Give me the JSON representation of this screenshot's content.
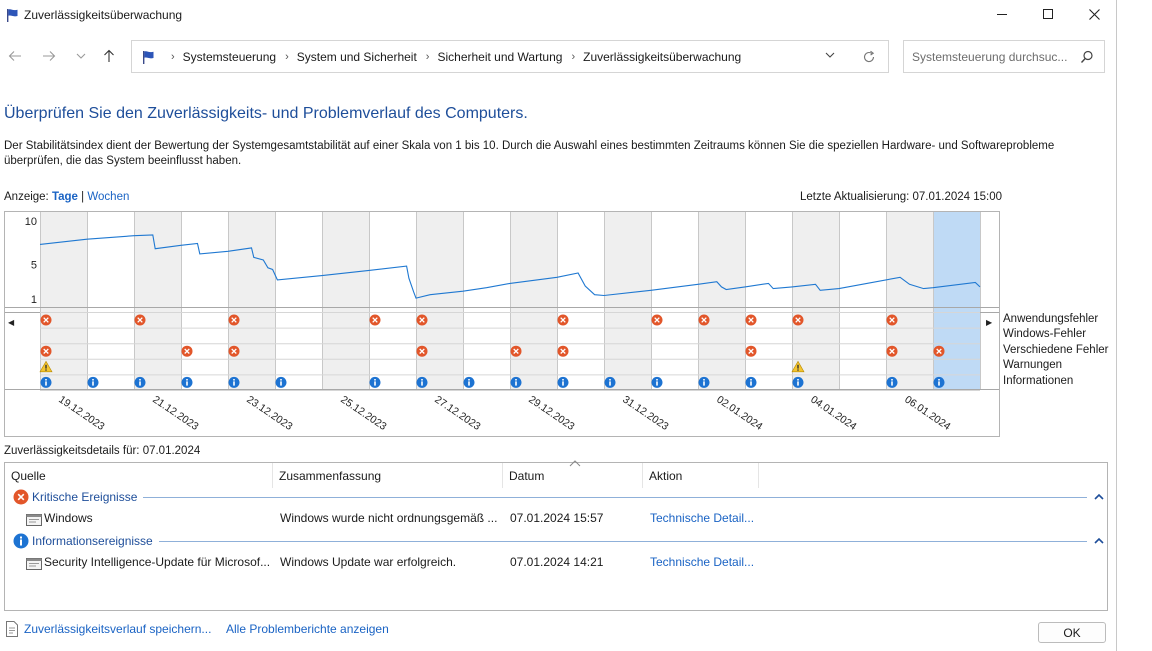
{
  "window": {
    "title": "Zuverlässigkeitsüberwachung",
    "icon": "flag-icon"
  },
  "nav": {
    "breadcrumbs": [
      "Systemsteuerung",
      "System und Sicherheit",
      "Sicherheit und Wartung",
      "Zuverlässigkeitsüberwachung"
    ],
    "search_placeholder": "Systemsteuerung durchsuc..."
  },
  "page": {
    "heading": "Überprüfen Sie den Zuverlässigkeits- und Problemverlauf des Computers.",
    "description": "Der Stabilitätsindex dient der Bewertung der Systemgesamtstabilität auf einer Skala von 1 bis 10. Durch die Auswahl eines bestimmten Zeitraums können Sie die speziellen Hardware- und Softwareprobleme überprüfen, die das System beeinflusst haben.",
    "view_label": "Anzeige:",
    "view_days": "Tage",
    "view_sep": "|",
    "view_weeks": "Wochen",
    "last_update": "Letzte Aktualisierung: 07.01.2024 15:00"
  },
  "chart_data": {
    "type": "line",
    "y_ticks": [
      "10",
      "5",
      "1"
    ],
    "ylim": [
      1,
      10
    ],
    "columns": 20,
    "selected_column": 19,
    "date_labels": [
      "19.12.2023",
      "21.12.2023",
      "23.12.2023",
      "25.12.2023",
      "27.12.2023",
      "29.12.2023",
      "31.12.2023",
      "02.01.2024",
      "04.01.2024",
      "06.01.2024"
    ],
    "stability_index": [
      [
        0,
        7.3
      ],
      [
        1,
        7.9
      ],
      [
        2,
        8.3
      ],
      [
        2.4,
        8.4
      ],
      [
        2.45,
        6.8
      ],
      [
        3,
        7.2
      ],
      [
        3.35,
        7.4
      ],
      [
        3.4,
        6.2
      ],
      [
        4,
        6.5
      ],
      [
        4.5,
        6.9
      ],
      [
        4.55,
        5.8
      ],
      [
        4.75,
        5.5
      ],
      [
        4.85,
        4.6
      ],
      [
        4.95,
        4.4
      ],
      [
        5.05,
        3.2
      ],
      [
        6,
        3.7
      ],
      [
        7,
        4.3
      ],
      [
        7.8,
        4.8
      ],
      [
        7.85,
        3.4
      ],
      [
        7.95,
        1.8
      ],
      [
        8,
        1.1
      ],
      [
        8.3,
        1.5
      ],
      [
        9,
        1.9
      ],
      [
        9.5,
        2.3
      ],
      [
        10,
        2.8
      ],
      [
        11,
        3.5
      ],
      [
        11.45,
        4.0
      ],
      [
        11.6,
        2.5
      ],
      [
        11.8,
        1.5
      ],
      [
        12,
        1.4
      ],
      [
        13,
        2.0
      ],
      [
        14,
        2.7
      ],
      [
        14.4,
        3.0
      ],
      [
        14.5,
        2.4
      ],
      [
        14.6,
        2.1
      ],
      [
        15,
        2.4
      ],
      [
        15.5,
        2.8
      ],
      [
        15.6,
        2.2
      ],
      [
        16,
        2.4
      ],
      [
        16.5,
        2.7
      ],
      [
        16.6,
        2.0
      ],
      [
        17,
        2.2
      ],
      [
        18.3,
        3.5
      ],
      [
        18.5,
        2.7
      ],
      [
        18.8,
        2.2
      ],
      [
        19,
        2.3
      ],
      [
        19.9,
        2.9
      ],
      [
        20,
        2.4
      ]
    ],
    "event_rows": [
      "Anwendungsfehler",
      "Windows-Fehler",
      "Verschiedene Fehler",
      "Warnungen",
      "Informationen"
    ],
    "events": {
      "Anwendungsfehler": [
        0,
        2,
        4,
        7,
        8,
        11,
        13,
        14,
        15,
        16,
        18
      ],
      "Windows-Fehler": [],
      "Verschiedene Fehler": [
        0,
        3,
        4,
        8,
        10,
        11,
        15,
        18,
        19
      ],
      "Warnungen": [
        0,
        16
      ],
      "Informationen": [
        0,
        1,
        2,
        3,
        4,
        5,
        7,
        8,
        9,
        10,
        11,
        12,
        13,
        14,
        15,
        16,
        18,
        19
      ]
    }
  },
  "details": {
    "label": "Zuverlässigkeitsdetails für: 07.01.2024",
    "columns": [
      "Quelle",
      "Zusammenfassung",
      "Datum",
      "Aktion"
    ],
    "groups": [
      {
        "label": "Kritische Ereignisse",
        "icon": "error-icon",
        "rows": [
          {
            "source": "Windows",
            "summary": "Windows wurde nicht ordnungsgemäß ...",
            "date": "07.01.2024 15:57",
            "action": "Technische Detail..."
          }
        ]
      },
      {
        "label": "Informationsereignisse",
        "icon": "info-icon",
        "rows": [
          {
            "source": "Security Intelligence-Update für Microsof...",
            "summary": "Windows Update war erfolgreich.",
            "date": "07.01.2024 14:21",
            "action": "Technische Detail..."
          }
        ]
      }
    ]
  },
  "footer": {
    "save_link": "Zuverlässigkeitsverlauf speichern...",
    "reports_link": "Alle Problemberichte anzeigen",
    "ok": "OK"
  },
  "colors": {
    "link": "#1a63c4",
    "heading": "#1e4e9a",
    "line": "#1f78d1",
    "selected": "#bfdaf5",
    "shade": "#efefef",
    "error": "#e2562a",
    "info": "#1d73d2",
    "warning": "#f4c531"
  }
}
